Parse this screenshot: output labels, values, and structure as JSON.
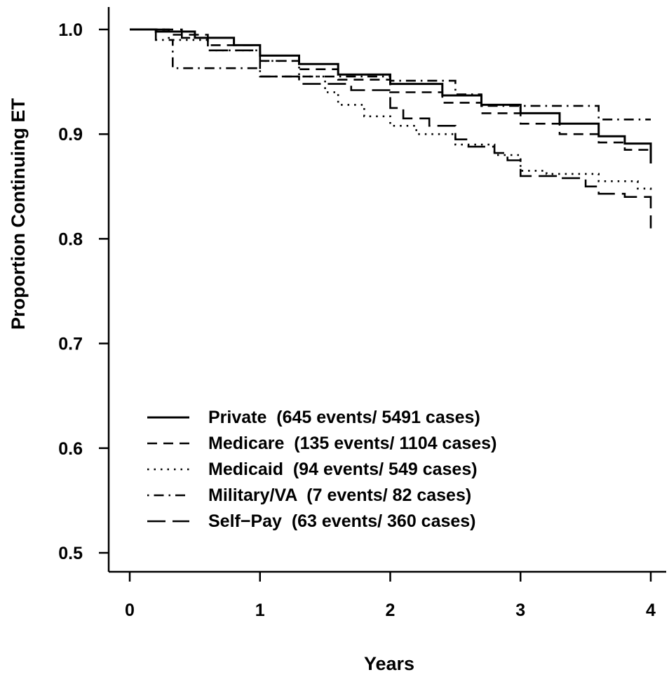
{
  "chart_data": {
    "type": "line",
    "title": "",
    "xlabel": "Years",
    "ylabel": "Proportion Continuing ET",
    "xlim": [
      0,
      4
    ],
    "ylim": [
      0.5,
      1.0
    ],
    "x_ticks": [
      "0",
      "1",
      "2",
      "3",
      "4"
    ],
    "y_ticks": [
      "0.5",
      "0.6",
      "0.7",
      "0.8",
      "0.9",
      "1.0"
    ],
    "grid": false,
    "legend": "bottom-left",
    "line_color": "#000000",
    "series": [
      {
        "name": "Private  (645 events/ 5491 cases)",
        "dash": "solid",
        "points": [
          [
            0,
            1.0
          ],
          [
            0.2,
            0.998
          ],
          [
            0.5,
            0.992
          ],
          [
            0.8,
            0.985
          ],
          [
            1.0,
            0.975
          ],
          [
            1.3,
            0.967
          ],
          [
            1.6,
            0.957
          ],
          [
            2.0,
            0.948
          ],
          [
            2.4,
            0.937
          ],
          [
            2.7,
            0.928
          ],
          [
            3.0,
            0.92
          ],
          [
            3.3,
            0.91
          ],
          [
            3.6,
            0.898
          ],
          [
            3.8,
            0.891
          ],
          [
            4.0,
            0.886
          ],
          [
            4.0,
            0.872
          ]
        ]
      },
      {
        "name": "Medicare  (135 events/ 1104 cases)",
        "dash": "dashed",
        "points": [
          [
            0,
            1.0
          ],
          [
            0.3,
            0.995
          ],
          [
            0.6,
            0.985
          ],
          [
            1.0,
            0.97
          ],
          [
            1.3,
            0.962
          ],
          [
            1.6,
            0.952
          ],
          [
            2.0,
            0.94
          ],
          [
            2.4,
            0.93
          ],
          [
            2.7,
            0.92
          ],
          [
            3.0,
            0.91
          ],
          [
            3.3,
            0.9
          ],
          [
            3.6,
            0.892
          ],
          [
            3.8,
            0.885
          ],
          [
            4.0,
            0.882
          ],
          [
            4.0,
            0.875
          ]
        ]
      },
      {
        "name": "Medicaid  (94 events/ 549 cases)",
        "dash": "dotted",
        "points": [
          [
            0,
            1.0
          ],
          [
            0.3,
            0.99
          ],
          [
            0.6,
            0.98
          ],
          [
            1.0,
            0.97
          ],
          [
            1.3,
            0.955
          ],
          [
            1.5,
            0.94
          ],
          [
            1.6,
            0.928
          ],
          [
            1.8,
            0.917
          ],
          [
            2.0,
            0.908
          ],
          [
            2.2,
            0.9
          ],
          [
            2.5,
            0.89
          ],
          [
            2.8,
            0.88
          ],
          [
            3.0,
            0.865
          ],
          [
            3.2,
            0.862
          ],
          [
            3.6,
            0.855
          ],
          [
            3.9,
            0.848
          ],
          [
            4.0,
            0.843
          ]
        ]
      },
      {
        "name": "Military/VA  (7 events/ 82 cases)",
        "dash": "dotdash",
        "points": [
          [
            0,
            1.0
          ],
          [
            0.2,
            0.99
          ],
          [
            0.33,
            0.99
          ],
          [
            0.33,
            0.963
          ],
          [
            1.0,
            0.963
          ],
          [
            1.0,
            0.955
          ],
          [
            2.0,
            0.955
          ],
          [
            2.0,
            0.951
          ],
          [
            2.5,
            0.951
          ],
          [
            2.5,
            0.938
          ],
          [
            2.7,
            0.938
          ],
          [
            2.7,
            0.927
          ],
          [
            3.6,
            0.927
          ],
          [
            3.6,
            0.914
          ],
          [
            4.0,
            0.914
          ]
        ]
      },
      {
        "name": "Self−Pay  (63 events/ 360 cases)",
        "dash": "longdash",
        "points": [
          [
            0,
            1.0
          ],
          [
            0.4,
            0.992
          ],
          [
            0.6,
            0.98
          ],
          [
            1.0,
            0.97
          ],
          [
            1.0,
            0.955
          ],
          [
            1.3,
            0.948
          ],
          [
            1.7,
            0.942
          ],
          [
            2.0,
            0.942
          ],
          [
            2.0,
            0.925
          ],
          [
            2.1,
            0.915
          ],
          [
            2.3,
            0.908
          ],
          [
            2.5,
            0.895
          ],
          [
            2.6,
            0.888
          ],
          [
            2.8,
            0.882
          ],
          [
            2.9,
            0.875
          ],
          [
            3.0,
            0.86
          ],
          [
            3.3,
            0.858
          ],
          [
            3.5,
            0.85
          ],
          [
            3.6,
            0.843
          ],
          [
            3.8,
            0.84
          ],
          [
            4.0,
            0.84
          ],
          [
            4.0,
            0.81
          ]
        ]
      }
    ]
  }
}
